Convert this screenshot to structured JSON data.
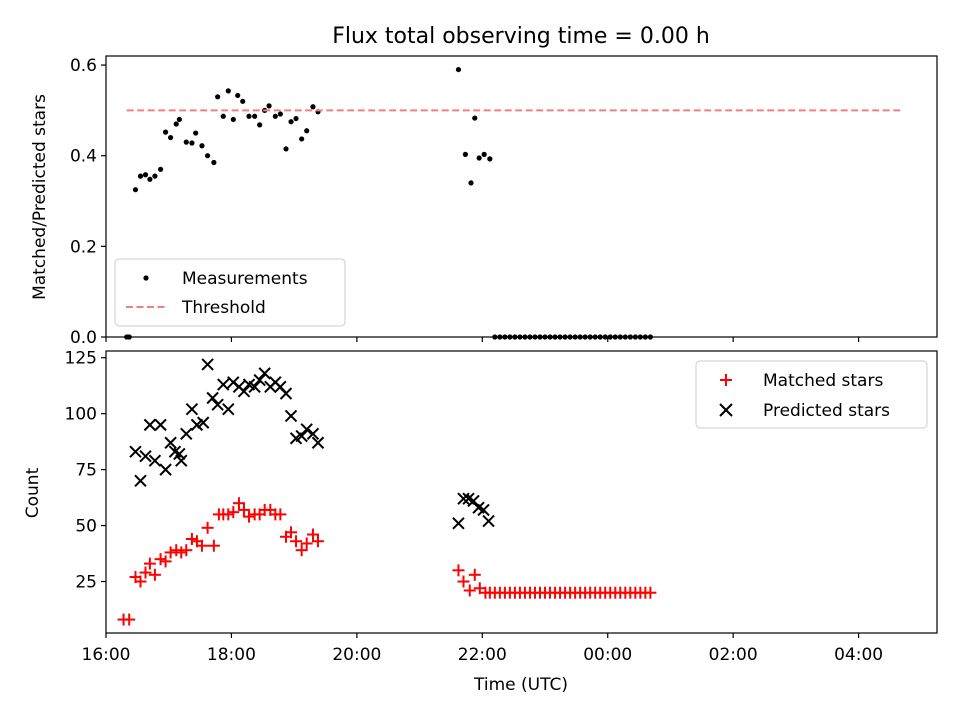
{
  "chart_data": [
    {
      "type": "scatter",
      "title": "Flux total observing time = 0.00 h",
      "ylabel": "Matched/Predicted stars",
      "xlabel": "",
      "xlim": [
        16.0,
        29.25
      ],
      "ylim": [
        0,
        0.62
      ],
      "yticks": [
        "0.0",
        "0.2",
        "0.4",
        "0.6"
      ],
      "ytick_values": [
        0.0,
        0.2,
        0.4,
        0.6
      ],
      "grid": false,
      "legend_position": "lower-left",
      "series": [
        {
          "name": "Measurements",
          "kind": "scatter",
          "marker": "dot",
          "color": "#000000",
          "x": [
            16.33,
            16.37,
            16.47,
            16.55,
            16.63,
            16.7,
            16.78,
            16.87,
            16.95,
            17.03,
            17.12,
            17.17,
            17.28,
            17.37,
            17.43,
            17.53,
            17.62,
            17.72,
            17.78,
            17.87,
            17.95,
            18.03,
            18.1,
            18.18,
            18.28,
            18.37,
            18.45,
            18.53,
            18.6,
            18.7,
            18.78,
            18.87,
            18.95,
            19.03,
            19.12,
            19.2,
            19.3,
            19.38,
            21.62,
            21.73,
            21.82,
            21.88,
            21.95,
            22.03,
            22.12,
            22.2,
            22.28,
            22.36,
            22.44,
            22.52,
            22.6,
            22.68,
            22.76,
            22.84,
            22.92,
            23.0,
            23.08,
            23.16,
            23.24,
            23.32,
            23.4,
            23.48,
            23.56,
            23.64,
            23.72,
            23.8,
            23.88,
            23.96,
            24.04,
            24.12,
            24.2,
            24.28,
            24.36,
            24.44,
            24.52,
            24.6,
            24.68
          ],
          "y": [
            0.0,
            0.0,
            0.325,
            0.355,
            0.358,
            0.348,
            0.355,
            0.37,
            0.452,
            0.44,
            0.47,
            0.48,
            0.43,
            0.428,
            0.45,
            0.422,
            0.4,
            0.385,
            0.53,
            0.487,
            0.543,
            0.48,
            0.533,
            0.52,
            0.487,
            0.487,
            0.468,
            0.5,
            0.51,
            0.487,
            0.492,
            0.415,
            0.475,
            0.482,
            0.437,
            0.455,
            0.508,
            0.497,
            0.59,
            0.403,
            0.34,
            0.483,
            0.395,
            0.403,
            0.393,
            0.0,
            0.0,
            0.0,
            0.0,
            0.0,
            0.0,
            0.0,
            0.0,
            0.0,
            0.0,
            0.0,
            0.0,
            0.0,
            0.0,
            0.0,
            0.0,
            0.0,
            0.0,
            0.0,
            0.0,
            0.0,
            0.0,
            0.0,
            0.0,
            0.0,
            0.0,
            0.0,
            0.0,
            0.0,
            0.0,
            0.0,
            0.0
          ]
        },
        {
          "name": "Threshold",
          "kind": "line",
          "dash": "dashed",
          "color": "#f08080",
          "x": [
            16.33,
            28.68
          ],
          "y": [
            0.5,
            0.5
          ]
        }
      ]
    },
    {
      "type": "scatter",
      "title": "",
      "ylabel": "Count",
      "xlabel": "Time (UTC)",
      "xlim": [
        16.0,
        29.25
      ],
      "ylim": [
        2,
        128
      ],
      "yticks": [
        "25",
        "50",
        "75",
        "100",
        "125"
      ],
      "ytick_values": [
        25,
        50,
        75,
        100,
        125
      ],
      "xticks": [
        "16:00",
        "18:00",
        "20:00",
        "22:00",
        "00:00",
        "02:00",
        "04:00"
      ],
      "xtick_values": [
        16,
        18,
        20,
        22,
        24,
        26,
        28
      ],
      "grid": false,
      "legend_position": "top-right",
      "series": [
        {
          "name": "Matched stars",
          "kind": "scatter",
          "marker": "plus",
          "color": "#ff0000",
          "x": [
            16.28,
            16.37,
            16.47,
            16.55,
            16.63,
            16.7,
            16.78,
            16.87,
            16.95,
            17.03,
            17.12,
            17.2,
            17.28,
            17.37,
            17.45,
            17.53,
            17.62,
            17.72,
            17.8,
            17.87,
            17.95,
            18.03,
            18.12,
            18.2,
            18.28,
            18.37,
            18.45,
            18.53,
            18.62,
            18.7,
            18.78,
            18.87,
            18.95,
            19.03,
            19.12,
            19.2,
            19.3,
            19.38,
            21.62,
            21.7,
            21.8,
            21.88,
            21.96,
            22.05,
            22.12,
            22.2,
            22.28,
            22.36,
            22.44,
            22.52,
            22.6,
            22.68,
            22.76,
            22.84,
            22.92,
            23.0,
            23.08,
            23.16,
            23.24,
            23.32,
            23.4,
            23.48,
            23.56,
            23.64,
            23.72,
            23.8,
            23.88,
            23.96,
            24.04,
            24.12,
            24.2,
            24.28,
            24.36,
            24.44,
            24.52,
            24.6,
            24.68
          ],
          "y": [
            8,
            8,
            27,
            25,
            29,
            33,
            28,
            35,
            34,
            38,
            39,
            38,
            39,
            44,
            43,
            41,
            49,
            41,
            55,
            55,
            55,
            56,
            60,
            57,
            54,
            55,
            55,
            57,
            57,
            55,
            55,
            45,
            47,
            43,
            39,
            42,
            46,
            43,
            30,
            25,
            21,
            28,
            22,
            20,
            20,
            20,
            20,
            20,
            20,
            20,
            20,
            20,
            20,
            20,
            20,
            20,
            20,
            20,
            20,
            20,
            20,
            20,
            20,
            20,
            20,
            20,
            20,
            20,
            20,
            20,
            20,
            20,
            20,
            20,
            20,
            20,
            20
          ]
        },
        {
          "name": "Predicted stars",
          "kind": "scatter",
          "marker": "x",
          "color": "#000000",
          "x": [
            16.47,
            16.55,
            16.63,
            16.7,
            16.78,
            16.87,
            16.95,
            17.03,
            17.1,
            17.17,
            17.2,
            17.28,
            17.37,
            17.45,
            17.55,
            17.62,
            17.7,
            17.78,
            17.87,
            17.95,
            18.03,
            18.12,
            18.2,
            18.28,
            18.37,
            18.45,
            18.53,
            18.62,
            18.7,
            18.78,
            18.87,
            18.95,
            19.03,
            19.12,
            19.2,
            19.3,
            19.38,
            21.62,
            21.7,
            21.78,
            21.86,
            21.94,
            22.02,
            22.1
          ],
          "y": [
            83,
            70,
            81,
            95,
            79,
            95,
            75,
            87,
            83,
            82,
            79,
            91,
            102,
            95,
            96,
            122,
            107,
            104,
            113,
            102,
            114,
            112,
            110,
            113,
            112,
            115,
            118,
            112,
            114,
            112,
            109,
            99,
            89,
            90,
            93,
            91,
            87,
            51,
            62,
            62,
            61,
            58,
            57,
            52
          ]
        }
      ]
    }
  ]
}
